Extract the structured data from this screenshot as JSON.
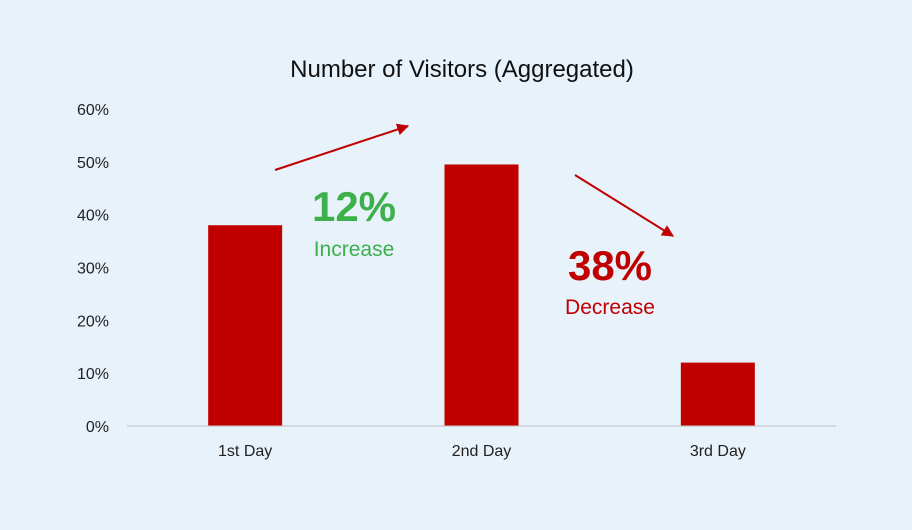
{
  "chart_data": {
    "type": "bar",
    "title": "Number of Visitors (Aggregated)",
    "xlabel": "",
    "ylabel": "",
    "categories": [
      "1st Day",
      "2nd Day",
      "3rd Day"
    ],
    "values": [
      0.38,
      0.495,
      0.12
    ],
    "ylim": [
      0,
      0.6
    ],
    "yticks": [
      "0%",
      "10%",
      "20%",
      "30%",
      "40%",
      "50%",
      "60%"
    ],
    "grid": false,
    "legend": "none",
    "colors": {
      "bar": "#c00000",
      "increase": "#3cb04a",
      "decrease": "#c00000",
      "arrow": "#c00000"
    },
    "annotations": [
      {
        "value": "12%",
        "label": "Increase",
        "from": "1st Day",
        "to": "2nd Day",
        "direction": "up"
      },
      {
        "value": "38%",
        "label": "Decrease",
        "from": "2nd Day",
        "to": "3rd Day",
        "direction": "down"
      }
    ]
  }
}
